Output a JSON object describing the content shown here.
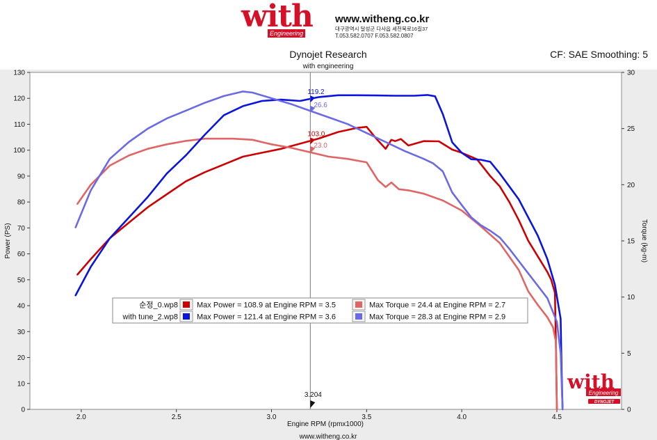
{
  "header": {
    "brand_word": "with",
    "brand_sub": "Engineering",
    "site": "www.witheng.co.kr",
    "address": "대구광역시 달성군 다사읍 세천북로16길37",
    "phone_fax": "T.053.582.0707 F.053.582.0807"
  },
  "colors": {
    "brand_red": "#d3122a",
    "s0_power": "#cc0000",
    "s0_torque": "#e06565",
    "s1_power": "#0a14dc",
    "s1_torque": "#6a6ae6",
    "cursor": "#777777"
  },
  "chart_data": {
    "type": "line",
    "title": "Dynojet Research",
    "subtitle": "with engineering",
    "correction": "CF: SAE Smoothing: 5",
    "xlabel": "Engine RPM (rpmx1000)",
    "ylabel_left": "Power (PS)",
    "ylabel_right": "Torque (kg-m)",
    "footer": "www.witheng.co.kr",
    "xlim": [
      1.73,
      4.84
    ],
    "ylim_left": [
      0,
      130
    ],
    "ylim_right": [
      0,
      30
    ],
    "xticks": [
      2.0,
      2.5,
      3.0,
      3.5,
      4.0,
      4.5
    ],
    "xtick_labels": [
      "2.0",
      "2.5",
      "3.0",
      "3.5",
      "4.0",
      "4.5"
    ],
    "yticks_left": [
      0,
      10,
      20,
      30,
      40,
      50,
      60,
      70,
      80,
      90,
      100,
      110,
      120,
      130
    ],
    "yticks_right": [
      0,
      5,
      10,
      15,
      20,
      25,
      30
    ],
    "cursor": {
      "x": 3.204,
      "label": "3.204",
      "readouts": [
        {
          "series": 2,
          "value_text": "119.2",
          "y": 119.2,
          "axis": "left"
        },
        {
          "series": 3,
          "value_text": "26.6",
          "y": 26.6,
          "axis": "right"
        },
        {
          "series": 0,
          "value_text": "103.0",
          "y": 103.0,
          "axis": "left"
        },
        {
          "series": 1,
          "value_text": "23.0",
          "y": 23.0,
          "axis": "right"
        }
      ]
    },
    "series": [
      {
        "name": "순정_0.wp8 Power",
        "axis": "left",
        "color_key": "s0_power",
        "x": [
          1.98,
          2.05,
          2.15,
          2.25,
          2.35,
          2.45,
          2.55,
          2.65,
          2.75,
          2.85,
          2.95,
          3.05,
          3.15,
          3.25,
          3.35,
          3.45,
          3.5,
          3.55,
          3.6,
          3.63,
          3.65,
          3.68,
          3.72,
          3.8,
          3.88,
          3.95,
          4.0,
          4.08,
          4.15,
          4.2,
          4.25,
          4.3,
          4.35,
          4.4,
          4.45,
          4.47,
          4.49,
          4.495,
          4.5
        ],
        "y": [
          52,
          58,
          66,
          72,
          78,
          83,
          88,
          91.5,
          94.5,
          97.5,
          99,
          100.5,
          102.5,
          104.5,
          107,
          108.6,
          109,
          104.5,
          100.5,
          104,
          103.5,
          104.3,
          101.8,
          103.5,
          103.4,
          100.2,
          99,
          96.5,
          90,
          86,
          80,
          73,
          65,
          59,
          53,
          50,
          45,
          25,
          0
        ]
      },
      {
        "name": "순정_0.wp8 Torque",
        "axis": "right",
        "color_key": "s0_torque",
        "x": [
          1.98,
          2.05,
          2.15,
          2.25,
          2.35,
          2.45,
          2.55,
          2.65,
          2.7,
          2.8,
          2.9,
          3.0,
          3.1,
          3.2,
          3.3,
          3.4,
          3.5,
          3.53,
          3.56,
          3.6,
          3.63,
          3.67,
          3.72,
          3.8,
          3.9,
          4.0,
          4.1,
          4.2,
          4.3,
          4.35,
          4.4,
          4.45,
          4.48,
          4.495,
          4.5
        ],
        "y": [
          18.3,
          20.0,
          21.7,
          22.6,
          23.2,
          23.6,
          23.9,
          24.1,
          24.1,
          24.1,
          24.0,
          23.6,
          23.3,
          22.9,
          22.5,
          22.3,
          22.0,
          21.2,
          20.4,
          19.8,
          20.2,
          19.6,
          19.5,
          19.2,
          18.6,
          17.7,
          16.3,
          14.8,
          12.4,
          10.5,
          9.3,
          8.2,
          7.3,
          6.0,
          0
        ]
      },
      {
        "name": "with tune_2.wp8 Power",
        "axis": "left",
        "color_key": "s1_power",
        "x": [
          1.97,
          2.05,
          2.15,
          2.25,
          2.35,
          2.45,
          2.55,
          2.65,
          2.75,
          2.85,
          2.95,
          3.05,
          3.15,
          3.25,
          3.35,
          3.45,
          3.55,
          3.65,
          3.75,
          3.82,
          3.86,
          3.9,
          3.95,
          4.0,
          4.05,
          4.1,
          4.15,
          4.2,
          4.25,
          4.3,
          4.35,
          4.4,
          4.45,
          4.49,
          4.52,
          4.525,
          4.53
        ],
        "y": [
          44,
          55,
          66,
          74,
          82,
          91,
          98,
          106,
          113.5,
          117,
          119,
          119.5,
          119,
          120.5,
          121.2,
          121.2,
          121.1,
          121.0,
          121.0,
          121.3,
          120.8,
          114,
          103,
          99,
          96.5,
          96.3,
          95.5,
          91,
          86,
          81,
          74,
          67,
          58,
          48,
          35,
          15,
          0
        ]
      },
      {
        "name": "with tune_2.wp8 Torque",
        "axis": "right",
        "color_key": "s1_torque",
        "x": [
          1.97,
          2.05,
          2.15,
          2.25,
          2.35,
          2.45,
          2.55,
          2.65,
          2.75,
          2.85,
          2.9,
          3.0,
          3.1,
          3.2,
          3.3,
          3.4,
          3.5,
          3.6,
          3.7,
          3.8,
          3.85,
          3.9,
          3.95,
          4.0,
          4.05,
          4.1,
          4.15,
          4.2,
          4.25,
          4.3,
          4.35,
          4.4,
          4.45,
          4.5,
          4.52,
          4.525,
          4.53
        ],
        "y": [
          16.2,
          19.5,
          22.3,
          23.8,
          25.0,
          25.9,
          26.6,
          27.3,
          27.9,
          28.3,
          28.2,
          27.7,
          27.2,
          26.6,
          26.0,
          25.4,
          24.6,
          23.8,
          23.0,
          22.3,
          21.9,
          21.2,
          19.3,
          18.2,
          17.1,
          16.4,
          15.9,
          15.3,
          14.3,
          13.2,
          12.1,
          11.0,
          9.9,
          7.8,
          5.0,
          2.5,
          0
        ]
      }
    ],
    "legend": [
      {
        "file": "순정_0.wp8",
        "power_text": "Max Power = 108.9 at Engine RPM = 3.5",
        "torque_text": "Max Torque = 24.4 at Engine RPM = 2.7",
        "power_key": "s0_power",
        "torque_key": "s0_torque"
      },
      {
        "file": "with tune_2.wp8",
        "power_text": "Max Power = 121.4 at Engine RPM = 3.6",
        "torque_text": "Max Torque = 28.3 at Engine RPM = 2.9",
        "power_key": "s1_power",
        "torque_key": "s1_torque"
      }
    ],
    "watermark": {
      "word": "with",
      "sub": "Engineering",
      "mark": "DYNOJET"
    }
  }
}
